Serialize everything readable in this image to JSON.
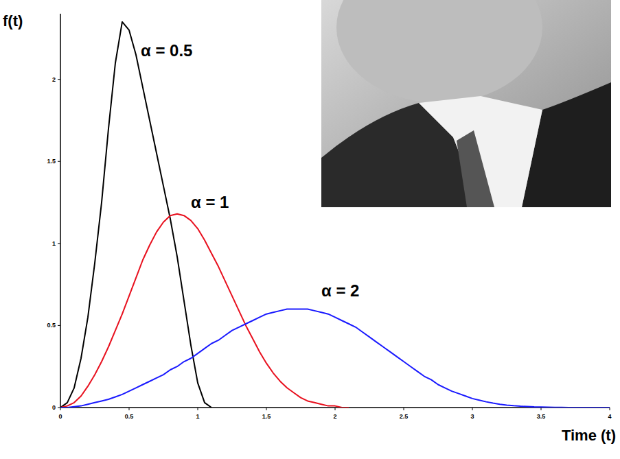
{
  "chart_data": {
    "type": "line",
    "x_label": "Time (t)",
    "y_label": "f(t)",
    "x": [
      0,
      0.05,
      0.1,
      0.15,
      0.2,
      0.25,
      0.3,
      0.35,
      0.4,
      0.45,
      0.5,
      0.55,
      0.6,
      0.65,
      0.7,
      0.75,
      0.8,
      0.85,
      0.9,
      0.95,
      1,
      1.05,
      1.1,
      1.15,
      1.2,
      1.25,
      1.3,
      1.35,
      1.4,
      1.45,
      1.5,
      1.55,
      1.6,
      1.65,
      1.7,
      1.75,
      1.8,
      1.85,
      1.9,
      1.95,
      2,
      2.05,
      2.1,
      2.15,
      2.2,
      2.25,
      2.3,
      2.35,
      2.4,
      2.45,
      2.5,
      2.55,
      2.6,
      2.65,
      2.7,
      2.75,
      2.8,
      2.85,
      2.9,
      2.95,
      3,
      3.05,
      3.1,
      3.15,
      3.2,
      3.25,
      3.3,
      3.35,
      3.4,
      3.45,
      3.5,
      3.55,
      3.6,
      3.65,
      3.7,
      3.75,
      3.8,
      3.85,
      3.9,
      3.95,
      4
    ],
    "series": [
      {
        "name": "α = 0.5",
        "color": "#000000",
        "values": [
          0,
          0.03,
          0.12,
          0.3,
          0.55,
          0.88,
          1.25,
          1.7,
          2.1,
          2.35,
          2.3,
          2.15,
          1.95,
          1.75,
          1.55,
          1.35,
          1.15,
          0.92,
          0.65,
          0.38,
          0.15,
          0.03,
          0,
          null,
          null,
          null,
          null,
          null,
          null,
          null,
          null,
          null,
          null,
          null,
          null,
          null,
          null,
          null,
          null,
          null,
          null,
          null,
          null,
          null,
          null,
          null,
          null,
          null,
          null,
          null,
          null,
          null,
          null,
          null,
          null,
          null,
          null,
          null,
          null,
          null,
          null,
          null,
          null,
          null,
          null,
          null,
          null,
          null,
          null,
          null,
          null,
          null,
          null,
          null,
          null,
          null,
          null,
          null,
          null,
          null,
          null
        ]
      },
      {
        "name": "α = 1",
        "color": "#e8101e",
        "values": [
          0,
          0.01,
          0.03,
          0.07,
          0.13,
          0.2,
          0.28,
          0.37,
          0.47,
          0.57,
          0.68,
          0.79,
          0.9,
          0.99,
          1.07,
          1.13,
          1.17,
          1.18,
          1.17,
          1.14,
          1.09,
          1.02,
          0.94,
          0.86,
          0.77,
          0.68,
          0.59,
          0.5,
          0.42,
          0.34,
          0.27,
          0.21,
          0.16,
          0.12,
          0.09,
          0.06,
          0.04,
          0.03,
          0.02,
          0.01,
          0.01,
          0,
          0,
          null,
          null,
          null,
          null,
          null,
          null,
          null,
          null,
          null,
          null,
          null,
          null,
          null,
          null,
          null,
          null,
          null,
          null,
          null,
          null,
          null,
          null,
          null,
          null,
          null,
          null,
          null,
          null,
          null,
          null,
          null,
          null,
          null,
          null,
          null,
          null,
          null,
          null
        ]
      },
      {
        "name": "α = 2",
        "color": "#1a1aff",
        "values": [
          0,
          0,
          0.005,
          0.01,
          0.02,
          0.03,
          0.04,
          0.05,
          0.065,
          0.08,
          0.1,
          0.12,
          0.14,
          0.16,
          0.18,
          0.2,
          0.23,
          0.25,
          0.28,
          0.3,
          0.33,
          0.36,
          0.39,
          0.41,
          0.44,
          0.47,
          0.49,
          0.51,
          0.53,
          0.55,
          0.57,
          0.58,
          0.59,
          0.6,
          0.6,
          0.6,
          0.6,
          0.59,
          0.58,
          0.57,
          0.55,
          0.53,
          0.51,
          0.49,
          0.46,
          0.43,
          0.4,
          0.37,
          0.34,
          0.31,
          0.28,
          0.25,
          0.22,
          0.19,
          0.17,
          0.14,
          0.12,
          0.1,
          0.085,
          0.07,
          0.055,
          0.045,
          0.035,
          0.027,
          0.02,
          0.015,
          0.011,
          0.008,
          0.006,
          0.004,
          0.003,
          0.002,
          0.001,
          0.001,
          0,
          0,
          0,
          0,
          0,
          0,
          0
        ]
      }
    ],
    "xlim": [
      0,
      4
    ],
    "ylim": [
      0,
      2.4
    ],
    "xticks": [
      0,
      0.5,
      1,
      1.5,
      2,
      2.5,
      3,
      3.5,
      4
    ],
    "yticks": [
      0,
      0.5,
      1,
      1.5,
      2
    ],
    "grid": false
  }
}
